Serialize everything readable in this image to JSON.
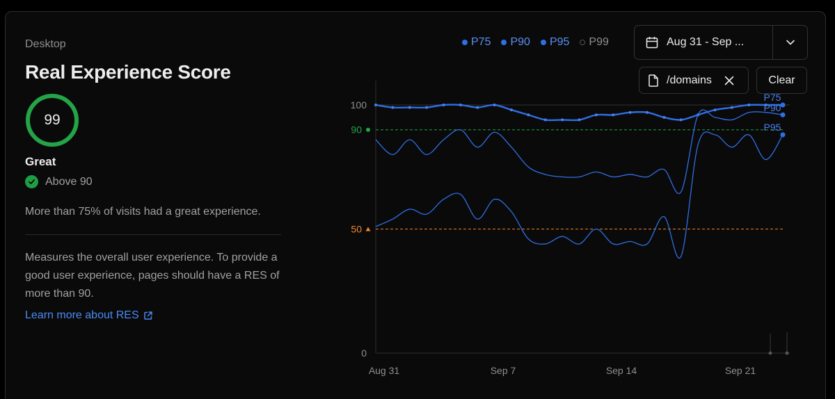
{
  "panel": {
    "device": "Desktop",
    "title": "Real Experience Score",
    "score": "99",
    "score_value": 99,
    "rating": "Great",
    "threshold_label": "Above 90",
    "summary": "More than 75% of visits had a great experience.",
    "description": "Measures the overall user experience. To provide a good user experience, pages should have a RES of more than 90.",
    "learn_more": "Learn more about RES"
  },
  "controls": {
    "date_range": "Aug 31 - Sep ...",
    "filter_path": "/domains",
    "clear_label": "Clear"
  },
  "colors": {
    "accent": "#2f6fe4",
    "great": "#22a447",
    "needs_improvement": "#f5822a",
    "inactive": "#8f8f8f"
  },
  "chart_data": {
    "type": "line",
    "title": "",
    "xlabel": "",
    "ylabel": "",
    "ylim": [
      0,
      100
    ],
    "yticks": [
      "100",
      "90",
      "50",
      "0"
    ],
    "xticks": [
      "Aug 31",
      "Sep 7",
      "Sep 14",
      "Sep 21"
    ],
    "x": [
      0,
      1,
      2,
      3,
      4,
      5,
      6,
      7,
      8,
      9,
      10,
      11,
      12,
      13,
      14,
      15,
      16,
      17,
      18,
      19,
      20,
      21,
      22,
      23,
      24
    ],
    "thresholds": [
      {
        "label": "90",
        "value": 90,
        "color": "#22a447"
      },
      {
        "label": "50",
        "value": 50,
        "color": "#f5822a"
      }
    ],
    "legend": [
      {
        "name": "P75",
        "active": true
      },
      {
        "name": "P90",
        "active": true
      },
      {
        "name": "P95",
        "active": true
      },
      {
        "name": "P99",
        "active": false
      }
    ],
    "series": [
      {
        "name": "P75",
        "values": [
          100,
          99,
          99,
          99,
          100,
          100,
          99,
          100,
          98,
          96,
          94,
          94,
          94,
          96,
          96,
          97,
          97,
          95,
          94,
          96,
          98,
          99,
          100,
          100,
          100
        ]
      },
      {
        "name": "P90",
        "values": [
          86,
          80,
          86,
          80,
          86,
          90,
          83,
          89,
          83,
          75,
          72,
          71,
          71,
          73,
          71,
          72,
          71,
          74,
          65,
          96,
          95,
          94,
          97,
          97,
          96
        ]
      },
      {
        "name": "P95",
        "values": [
          51,
          54,
          58,
          56,
          62,
          64,
          54,
          62,
          57,
          46,
          44,
          47,
          44,
          50,
          44,
          45,
          44,
          55,
          39,
          84,
          88,
          83,
          88,
          78,
          88
        ]
      }
    ]
  }
}
